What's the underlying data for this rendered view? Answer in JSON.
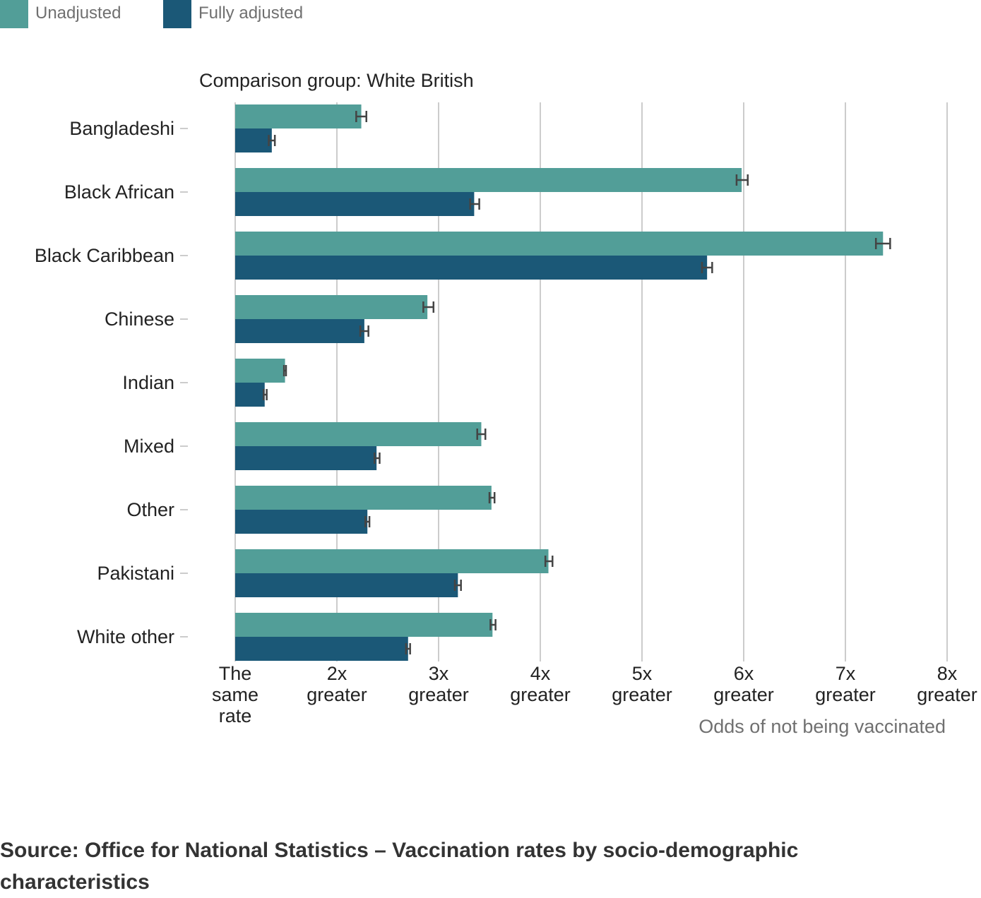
{
  "chart_data": {
    "type": "bar",
    "orientation": "horizontal",
    "subtitle": "Comparison group: White British",
    "xlabel": "Odds of not being vaccinated",
    "xlim": [
      1,
      8
    ],
    "xticks": [
      1,
      2,
      3,
      4,
      5,
      6,
      7,
      8
    ],
    "xtick_labels": [
      [
        "The",
        "same",
        "rate"
      ],
      [
        "2x",
        "greater"
      ],
      [
        "3x",
        "greater"
      ],
      [
        "4x",
        "greater"
      ],
      [
        "5x",
        "greater"
      ],
      [
        "6x",
        "greater"
      ],
      [
        "7x",
        "greater"
      ],
      [
        "8x",
        "greater"
      ]
    ],
    "grid": true,
    "legend_position": "top-left",
    "categories": [
      "Bangladeshi",
      "Black African",
      "Black Caribbean",
      "Chinese",
      "Indian",
      "Mixed",
      "Other",
      "Pakistani",
      "White other"
    ],
    "series": [
      {
        "name": "Unadjusted",
        "color": "#529e98",
        "values": [
          2.24,
          5.98,
          7.37,
          2.89,
          1.49,
          3.42,
          3.52,
          4.08,
          3.53
        ],
        "ci_low": [
          2.19,
          5.93,
          7.3,
          2.85,
          1.48,
          3.38,
          3.5,
          4.05,
          3.51
        ],
        "ci_high": [
          2.29,
          6.04,
          7.44,
          2.95,
          1.5,
          3.46,
          3.55,
          4.12,
          3.56
        ]
      },
      {
        "name": "Fully adjusted",
        "color": "#1b5877",
        "values": [
          1.36,
          3.35,
          5.64,
          2.27,
          1.29,
          2.39,
          2.3,
          3.19,
          2.7
        ],
        "ci_low": [
          1.33,
          3.31,
          5.59,
          2.23,
          1.28,
          2.37,
          2.28,
          3.16,
          2.68
        ],
        "ci_high": [
          1.39,
          3.4,
          5.69,
          2.31,
          1.31,
          2.42,
          2.32,
          3.22,
          2.72
        ]
      }
    ]
  },
  "source": "Source: Office for National Statistics – Vaccination rates by socio-demographic characteristics"
}
